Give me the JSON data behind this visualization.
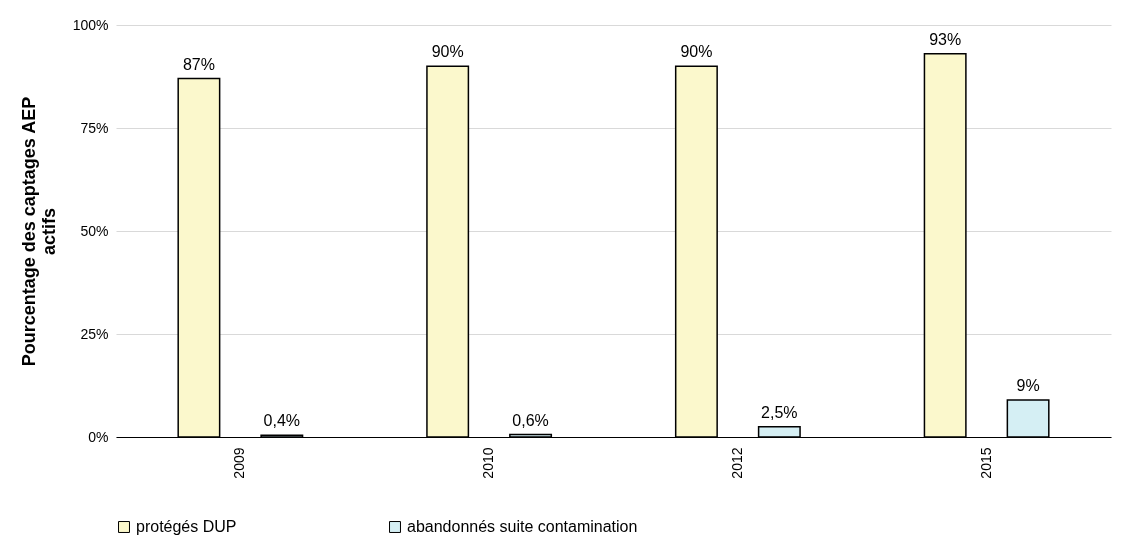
{
  "chart_data": {
    "type": "bar",
    "ylabel": "Pourcentage des captages AEP actifs",
    "categories": [
      "2009",
      "2010",
      "2012",
      "2015"
    ],
    "series": [
      {
        "name": "protégés DUP",
        "color": "#fbf8cc",
        "values": [
          87,
          90,
          90,
          93
        ],
        "value_labels": [
          "87%",
          "90%",
          "90%",
          "93%"
        ]
      },
      {
        "name": "abandonnés suite contamination",
        "color": "#d5eff4",
        "values": [
          0.4,
          0.6,
          2.5,
          9
        ],
        "value_labels": [
          "0,4%",
          "0,6%",
          "2,5%",
          "9%"
        ]
      }
    ],
    "ylim": [
      0,
      100
    ],
    "yticks": [
      {
        "value": 0,
        "label": "0%"
      },
      {
        "value": 25,
        "label": "25%"
      },
      {
        "value": 50,
        "label": "50%"
      },
      {
        "value": 75,
        "label": "75%"
      },
      {
        "value": 100,
        "label": "100%"
      }
    ],
    "grid": "y",
    "legend": "bottom"
  }
}
